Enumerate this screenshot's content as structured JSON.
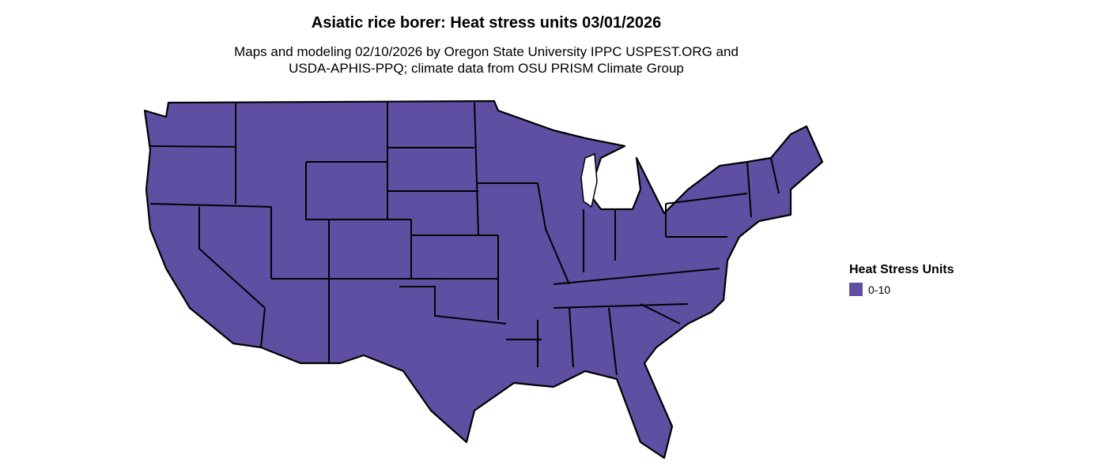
{
  "title": "Asiatic rice borer: Heat stress units 03/01/2026",
  "subtitle_lines": [
    "Maps and modeling 02/10/2026 by Oregon State University IPPC USPEST.ORG and",
    "USDA-APHIS-PPQ; climate data from OSU PRISM Climate Group"
  ],
  "map": {
    "region": "Contiguous United States",
    "fill_color": "#5E4FA2",
    "border_color": "#000000"
  },
  "legend": {
    "title": "Heat Stress Units",
    "items": [
      {
        "label": "0-10",
        "color": "#5E4FA2"
      }
    ]
  }
}
